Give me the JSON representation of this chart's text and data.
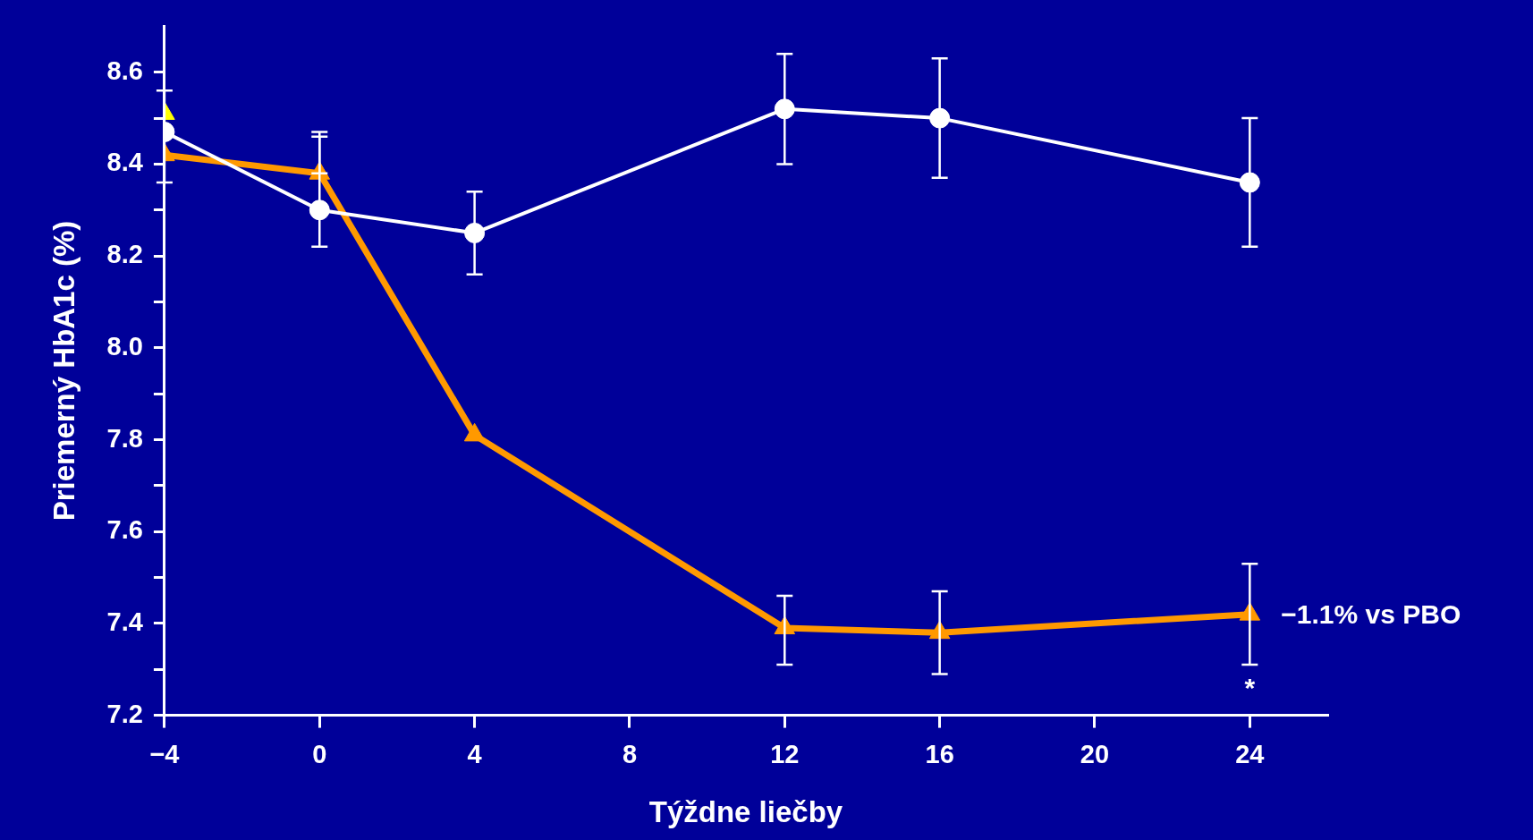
{
  "chart_data": {
    "type": "line",
    "xlabel": "Týždne liečby",
    "ylabel": "Priemerný HbA1c (%)",
    "xlim": [
      -4,
      26
    ],
    "xticks": [
      -4,
      0,
      4,
      8,
      12,
      16,
      20,
      24
    ],
    "ylim": [
      7.2,
      8.7
    ],
    "yticks": [
      7.2,
      {
        "value": 7.3,
        "label": null
      },
      7.4,
      {
        "value": 7.5,
        "label": null
      },
      7.6,
      {
        "value": 7.7,
        "label": null
      },
      7.8,
      {
        "value": 7.9,
        "label": null
      },
      {
        "value": 8.0,
        "label": "8.0"
      },
      {
        "value": 8.1,
        "label": null
      },
      8.2,
      {
        "value": 8.3,
        "label": null
      },
      8.4,
      {
        "value": 8.5,
        "label": null
      },
      8.6
    ],
    "grid": false,
    "legend": false,
    "marker": "circle",
    "line_style": "solid",
    "series": [
      {
        "color": "#ffffff",
        "x": [
          -4,
          0,
          4,
          12,
          16,
          24
        ],
        "values": [
          8.47,
          8.3,
          8.25,
          8.52,
          8.5,
          8.36
        ],
        "errors": [
          [
            8.36,
            8.56
          ],
          [
            8.22,
            8.47
          ],
          [
            8.16,
            8.34
          ],
          [
            8.4,
            8.64
          ],
          [
            8.37,
            8.63
          ],
          [
            8.22,
            8.5
          ]
        ]
      },
      {
        "color": "#ff9900",
        "marker": "triangle",
        "x": [
          -4,
          0,
          4,
          12,
          16,
          24
        ],
        "values": [
          8.42,
          8.38,
          7.81,
          7.39,
          7.38,
          7.42
        ],
        "errors": [
          null,
          [
            8.38,
            8.46
          ],
          null,
          [
            7.31,
            7.46
          ],
          [
            7.29,
            7.47
          ],
          [
            7.31,
            7.53
          ]
        ]
      },
      {
        "color": "#ffff00",
        "marker": "triangle",
        "x": [
          -4
        ],
        "values": [
          8.51
        ]
      }
    ],
    "annotations": [
      {
        "text": "−1.1% vs PBO",
        "x": 24,
        "y": 7.42
      },
      "*"
    ]
  }
}
